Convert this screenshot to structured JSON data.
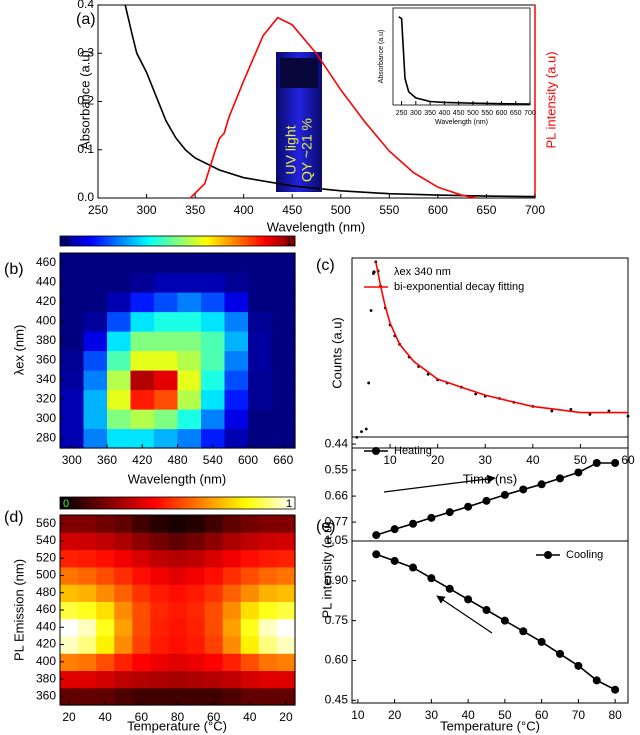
{
  "chart_data": [
    {
      "type": "line",
      "panel_label": "(a)",
      "xlabel": "Wavelength (nm)",
      "ylabel": "Absorbance (a.u)",
      "y2label": "PL intensity (a.u)",
      "xlim": [
        250,
        700
      ],
      "xticks": [
        250,
        300,
        350,
        400,
        450,
        500,
        550,
        600,
        650,
        700
      ],
      "ylim": [
        0,
        0.4
      ],
      "yticks": [
        {
          "value": 0,
          "label": "0.0"
        },
        0.1,
        0.2,
        0.3,
        0.4
      ],
      "y2lim": [
        0,
        1.07
      ],
      "series": [
        {
          "color": "#000000",
          "x": [
            278,
            285,
            290,
            300,
            310,
            320,
            330,
            340,
            350,
            375,
            400,
            450,
            500,
            550,
            600,
            650,
            700
          ],
          "values": [
            0.4,
            0.34,
            0.3,
            0.26,
            0.21,
            0.16,
            0.125,
            0.1,
            0.083,
            0.058,
            0.042,
            0.025,
            0.015,
            0.009,
            0.006,
            0.004,
            0.003
          ]
        },
        {
          "color": "#ff0000",
          "axis": "y2",
          "x": [
            345,
            360,
            370,
            375,
            380,
            385,
            400,
            420,
            435,
            450,
            475,
            500,
            525,
            550,
            575,
            600,
            625,
            640
          ],
          "values": [
            0,
            0.08,
            0.25,
            0.33,
            0.36,
            0.45,
            0.65,
            0.9,
            1,
            0.96,
            0.8,
            0.6,
            0.42,
            0.26,
            0.14,
            0.06,
            0.015,
            0
          ]
        }
      ],
      "annotations": [
        "UV light",
        "QY ~21 %"
      ],
      "inset": {
        "xlabel": "Wavelength (nm)",
        "ylabel": "Absorbance (a.u)",
        "xlim": [
          220,
          700
        ],
        "xticks": [
          250,
          300,
          350,
          400,
          450,
          500,
          550,
          600,
          650,
          700
        ],
        "ylim": [
          0,
          1.1
        ],
        "series": [
          {
            "color": "#000000",
            "x": [
              240,
              250,
              255,
              262,
              275,
              300,
              350,
              400,
              500,
              600,
              700
            ],
            "values": [
              1,
              0.98,
              0.7,
              0.3,
              0.15,
              0.08,
              0.04,
              0.03,
              0.02,
              0.015,
              0.01
            ]
          }
        ]
      }
    },
    {
      "type": "heatmap",
      "panel_label": "(b)",
      "xlabel": "Wavelength (nm)",
      "ylabel": "λex (nm)",
      "colormap": "jet",
      "xlim": [
        280,
        680
      ],
      "xticks": [
        300,
        360,
        420,
        480,
        540,
        600,
        660
      ],
      "ylim": [
        270,
        470
      ],
      "yticks": [
        280,
        300,
        320,
        340,
        360,
        380,
        400,
        420,
        440,
        460
      ],
      "zlim": [
        0,
        1
      ],
      "zticks": [
        0,
        1
      ],
      "x": [
        300,
        340,
        380,
        420,
        460,
        500,
        540,
        580,
        620,
        660
      ],
      "y": [
        280,
        300,
        320,
        340,
        360,
        380,
        400,
        420,
        440,
        460
      ],
      "z": [
        [
          0.05,
          0.25,
          0.35,
          0.35,
          0.3,
          0.25,
          0.15,
          0.05,
          0,
          0
        ],
        [
          0.05,
          0.3,
          0.5,
          0.55,
          0.5,
          0.4,
          0.25,
          0.1,
          0,
          0
        ],
        [
          0.05,
          0.3,
          0.6,
          0.85,
          0.8,
          0.55,
          0.35,
          0.15,
          0.02,
          0
        ],
        [
          0.03,
          0.25,
          0.55,
          0.95,
          0.9,
          0.6,
          0.4,
          0.2,
          0.02,
          0
        ],
        [
          0.02,
          0.2,
          0.45,
          0.6,
          0.6,
          0.55,
          0.45,
          0.25,
          0.03,
          0
        ],
        [
          0,
          0.1,
          0.35,
          0.5,
          0.5,
          0.5,
          0.45,
          0.3,
          0.03,
          0
        ],
        [
          0,
          0.03,
          0.2,
          0.35,
          0.4,
          0.4,
          0.35,
          0.25,
          0.02,
          0
        ],
        [
          0,
          0,
          0.05,
          0.15,
          0.2,
          0.25,
          0.2,
          0.1,
          0,
          0
        ],
        [
          0,
          0,
          0,
          0.02,
          0.05,
          0.05,
          0.05,
          0.02,
          0,
          0
        ],
        [
          0,
          0,
          0,
          0,
          0,
          0,
          0,
          0,
          0,
          0
        ]
      ]
    },
    {
      "type": "line",
      "panel_label": "(c)",
      "xlabel": "Time (ns)",
      "ylabel": "Counts (a.u)",
      "log_scale": true,
      "legend": "upper left",
      "xlim": [
        2,
        60
      ],
      "xticks": [
        10,
        20,
        30,
        40,
        50,
        60
      ],
      "ylim": [
        0.01,
        1.1
      ],
      "series": [
        {
          "name": "λex 340 nm",
          "color": "#000000",
          "marker": "dot",
          "x": [
            3,
            4,
            5,
            5.5,
            6,
            6.5,
            7,
            7.5,
            8,
            9,
            10,
            11,
            12,
            14,
            16,
            18,
            20,
            22,
            25,
            28,
            30,
            33,
            36,
            40,
            44,
            48,
            52,
            56,
            60
          ],
          "values": [
            0.013,
            0.015,
            0.016,
            0.05,
            0.3,
            0.75,
            1,
            0.8,
            0.55,
            0.32,
            0.21,
            0.16,
            0.13,
            0.095,
            0.075,
            0.062,
            0.054,
            0.05,
            0.045,
            0.038,
            0.036,
            0.034,
            0.031,
            0.028,
            0.025,
            0.026,
            0.023,
            0.025,
            0.022
          ]
        },
        {
          "name": "bi-exponential decay fitting",
          "color": "#ff0000",
          "x": [
            7,
            8,
            9,
            10,
            12,
            15,
            20,
            25,
            30,
            35,
            40,
            45,
            50,
            55,
            60
          ],
          "values": [
            1,
            0.55,
            0.33,
            0.22,
            0.13,
            0.085,
            0.055,
            0.045,
            0.037,
            0.032,
            0.028,
            0.026,
            0.024,
            0.024,
            0.024
          ]
        }
      ]
    },
    {
      "type": "heatmap",
      "panel_label": "(d)",
      "xlabel": "Temperature (°C)",
      "ylabel": "PL Emission (nm)",
      "colormap": "hot",
      "categories": [
        "20",
        null,
        "40",
        null,
        "60",
        null,
        "80",
        null,
        "60",
        null,
        "40",
        null,
        "20"
      ],
      "ylim": [
        350,
        570
      ],
      "yticks": [
        360,
        380,
        400,
        420,
        440,
        460,
        480,
        500,
        520,
        540,
        560
      ],
      "zlim": [
        0,
        1
      ],
      "zticks": [
        0,
        1
      ],
      "y": [
        360,
        380,
        400,
        420,
        440,
        460,
        480,
        500,
        520,
        540,
        560
      ],
      "z": [
        [
          0.15,
          0.15,
          0.15,
          0.12,
          0.1,
          0.1,
          0.1,
          0.1,
          0.1,
          0.12,
          0.15,
          0.15,
          0.15
        ],
        [
          0.35,
          0.35,
          0.33,
          0.3,
          0.28,
          0.27,
          0.26,
          0.27,
          0.28,
          0.3,
          0.33,
          0.35,
          0.35
        ],
        [
          0.6,
          0.58,
          0.52,
          0.45,
          0.4,
          0.37,
          0.35,
          0.37,
          0.4,
          0.45,
          0.52,
          0.58,
          0.6
        ],
        [
          0.95,
          0.9,
          0.78,
          0.62,
          0.5,
          0.44,
          0.42,
          0.44,
          0.5,
          0.62,
          0.78,
          0.9,
          0.95
        ],
        [
          1,
          0.95,
          0.82,
          0.65,
          0.52,
          0.45,
          0.43,
          0.45,
          0.52,
          0.65,
          0.82,
          0.95,
          1
        ],
        [
          0.85,
          0.82,
          0.75,
          0.62,
          0.52,
          0.46,
          0.44,
          0.46,
          0.52,
          0.62,
          0.75,
          0.82,
          0.85
        ],
        [
          0.7,
          0.68,
          0.62,
          0.55,
          0.48,
          0.44,
          0.42,
          0.44,
          0.48,
          0.55,
          0.62,
          0.68,
          0.7
        ],
        [
          0.58,
          0.56,
          0.52,
          0.47,
          0.42,
          0.38,
          0.36,
          0.38,
          0.42,
          0.47,
          0.52,
          0.56,
          0.58
        ],
        [
          0.45,
          0.44,
          0.42,
          0.38,
          0.34,
          0.3,
          0.28,
          0.3,
          0.34,
          0.38,
          0.42,
          0.44,
          0.45
        ],
        [
          0.33,
          0.32,
          0.3,
          0.27,
          0.22,
          0.18,
          0.15,
          0.18,
          0.22,
          0.27,
          0.3,
          0.32,
          0.33
        ],
        [
          0.2,
          0.2,
          0.18,
          0.15,
          0.1,
          0.06,
          0.04,
          0.06,
          0.1,
          0.15,
          0.18,
          0.2,
          0.2
        ]
      ]
    },
    {
      "type": "line",
      "panel_label": "(e)",
      "ylabel": "PL intensity (a.u)",
      "legend": "upper left",
      "xlim": [
        8.4,
        83.5
      ],
      "ylim": [
        0.85,
        0.41
      ],
      "yticks": [
        0.44,
        0.55,
        0.66,
        0.77
      ],
      "series": [
        {
          "name": "Heating",
          "color": "#000000",
          "marker": "circle",
          "x": [
            15,
            20,
            25,
            30,
            35,
            40,
            45,
            50,
            55,
            60,
            65,
            70,
            75,
            80
          ],
          "values": [
            0.825,
            0.8,
            0.777,
            0.752,
            0.728,
            0.705,
            0.68,
            0.655,
            0.632,
            0.61,
            0.585,
            0.56,
            0.52,
            0.52
          ]
        }
      ]
    },
    {
      "type": "line",
      "xlabel": "Temperature (°C)",
      "legend": "upper right",
      "xlim": [
        8.4,
        83.5
      ],
      "xticks": [
        10,
        20,
        30,
        40,
        50,
        60,
        70,
        80
      ],
      "ylim": [
        0.44,
        1.05
      ],
      "yticks": [
        0.45,
        {
          "value": 0.6,
          "label": "0.60"
        },
        0.75,
        {
          "value": 0.9,
          "label": "0.90"
        },
        1.05
      ],
      "series": [
        {
          "name": "Cooling",
          "color": "#000000",
          "marker": "circle",
          "x": [
            15,
            20,
            25,
            30,
            35,
            40,
            45,
            50,
            55,
            60,
            65,
            70,
            75,
            80
          ],
          "values": [
            1.0,
            0.975,
            0.95,
            0.91,
            0.87,
            0.83,
            0.79,
            0.75,
            0.71,
            0.67,
            0.625,
            0.58,
            0.525,
            0.49
          ]
        }
      ]
    }
  ]
}
